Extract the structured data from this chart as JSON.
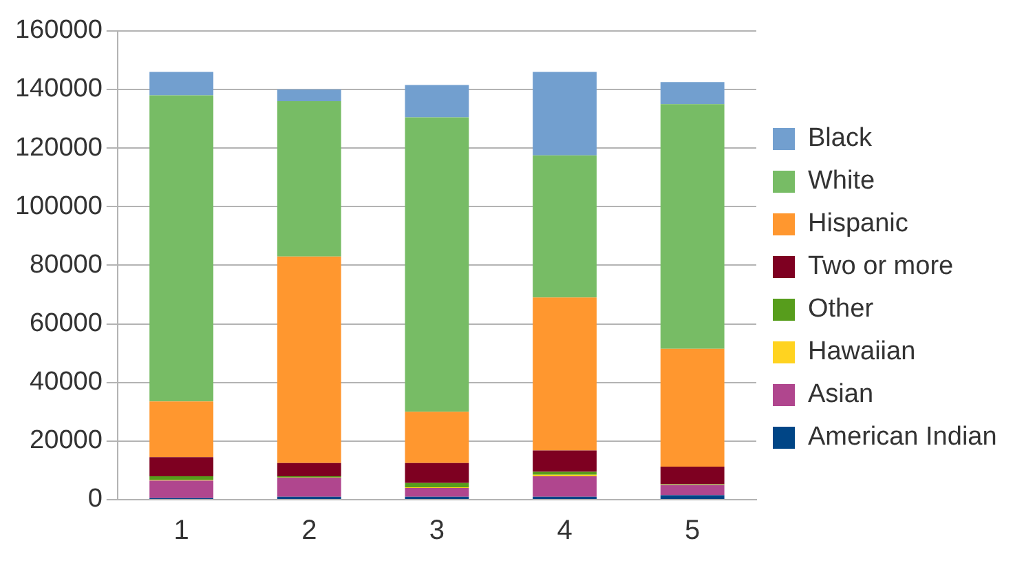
{
  "chart_data": {
    "type": "bar",
    "stacked": true,
    "categories": [
      "1",
      "2",
      "3",
      "4",
      "5"
    ],
    "series": [
      {
        "name": "American Indian",
        "color": "#004586",
        "values": [
          500,
          1000,
          1000,
          1000,
          1500
        ]
      },
      {
        "name": "Asian",
        "color": "#b0468e",
        "values": [
          6000,
          6500,
          3000,
          7000,
          3500
        ]
      },
      {
        "name": "Hawaiian",
        "color": "#ffd320",
        "values": [
          200,
          100,
          200,
          500,
          100
        ]
      },
      {
        "name": "Other",
        "color": "#579d1c",
        "values": [
          1300,
          400,
          1500,
          1000,
          200
        ]
      },
      {
        "name": "Two or more",
        "color": "#7e0021",
        "values": [
          6500,
          4500,
          6800,
          7300,
          6000
        ]
      },
      {
        "name": "Hispanic",
        "color": "#ff972f",
        "values": [
          19000,
          70500,
          17500,
          52200,
          40200
        ]
      },
      {
        "name": "White",
        "color": "#77bc65",
        "values": [
          104500,
          53000,
          100500,
          48500,
          83500
        ]
      },
      {
        "name": "Black",
        "color": "#729fcf",
        "values": [
          8000,
          4000,
          11000,
          28500,
          7500
        ]
      }
    ],
    "ylim": [
      0,
      160000
    ],
    "yticks": [
      0,
      20000,
      40000,
      60000,
      80000,
      100000,
      120000,
      140000,
      160000
    ],
    "grid": "y",
    "legend": "right"
  }
}
